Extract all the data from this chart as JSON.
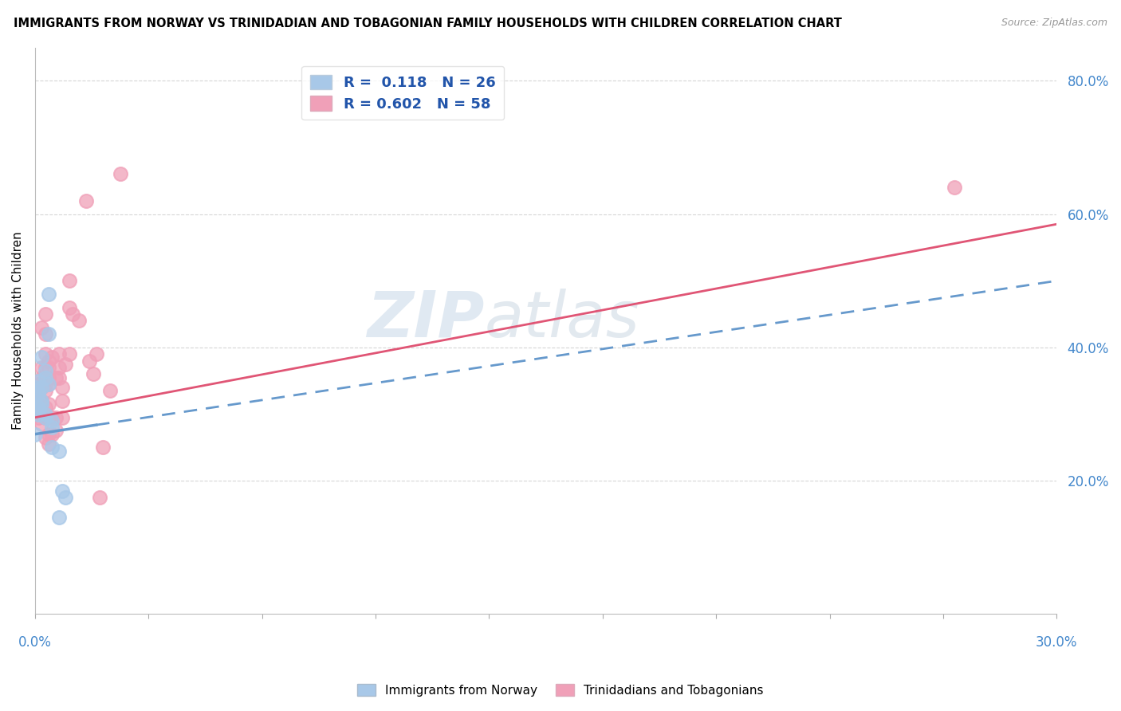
{
  "title": "IMMIGRANTS FROM NORWAY VS TRINIDADIAN AND TOBAGONIAN FAMILY HOUSEHOLDS WITH CHILDREN CORRELATION CHART",
  "source": "Source: ZipAtlas.com",
  "ylabel": "Family Households with Children",
  "watermark": "ZIPatlas",
  "norway_R": 0.118,
  "norway_N": 26,
  "trinidad_R": 0.602,
  "trinidad_N": 58,
  "norway_color": "#a8c8e8",
  "trinidad_color": "#f0a0b8",
  "norway_line_color": "#6699cc",
  "trinidad_line_color": "#e05575",
  "norway_points": [
    [
      0.0,
      0.27
    ],
    [
      0.001,
      0.333
    ],
    [
      0.002,
      0.34
    ],
    [
      0.001,
      0.35
    ],
    [
      0.001,
      0.31
    ],
    [
      0.001,
      0.33
    ],
    [
      0.002,
      0.32
    ],
    [
      0.001,
      0.305
    ],
    [
      0.0,
      0.34
    ],
    [
      0.001,
      0.3
    ],
    [
      0.002,
      0.315
    ],
    [
      0.003,
      0.365
    ],
    [
      0.003,
      0.295
    ],
    [
      0.002,
      0.385
    ],
    [
      0.004,
      0.42
    ],
    [
      0.003,
      0.355
    ],
    [
      0.004,
      0.345
    ],
    [
      0.004,
      0.48
    ],
    [
      0.003,
      0.3
    ],
    [
      0.005,
      0.28
    ],
    [
      0.005,
      0.25
    ],
    [
      0.005,
      0.29
    ],
    [
      0.007,
      0.245
    ],
    [
      0.007,
      0.145
    ],
    [
      0.008,
      0.185
    ],
    [
      0.009,
      0.175
    ]
  ],
  "trinidad_points": [
    [
      0.0,
      0.3
    ],
    [
      0.0,
      0.33
    ],
    [
      0.001,
      0.345
    ],
    [
      0.001,
      0.335
    ],
    [
      0.001,
      0.32
    ],
    [
      0.001,
      0.315
    ],
    [
      0.001,
      0.295
    ],
    [
      0.002,
      0.43
    ],
    [
      0.002,
      0.37
    ],
    [
      0.002,
      0.355
    ],
    [
      0.002,
      0.34
    ],
    [
      0.002,
      0.32
    ],
    [
      0.002,
      0.3
    ],
    [
      0.002,
      0.285
    ],
    [
      0.003,
      0.45
    ],
    [
      0.003,
      0.42
    ],
    [
      0.003,
      0.39
    ],
    [
      0.003,
      0.37
    ],
    [
      0.003,
      0.345
    ],
    [
      0.003,
      0.335
    ],
    [
      0.003,
      0.31
    ],
    [
      0.003,
      0.295
    ],
    [
      0.003,
      0.265
    ],
    [
      0.004,
      0.38
    ],
    [
      0.004,
      0.37
    ],
    [
      0.004,
      0.355
    ],
    [
      0.004,
      0.345
    ],
    [
      0.004,
      0.315
    ],
    [
      0.004,
      0.295
    ],
    [
      0.004,
      0.27
    ],
    [
      0.004,
      0.255
    ],
    [
      0.005,
      0.385
    ],
    [
      0.005,
      0.295
    ],
    [
      0.005,
      0.27
    ],
    [
      0.006,
      0.355
    ],
    [
      0.006,
      0.295
    ],
    [
      0.006,
      0.275
    ],
    [
      0.007,
      0.39
    ],
    [
      0.007,
      0.37
    ],
    [
      0.007,
      0.355
    ],
    [
      0.008,
      0.34
    ],
    [
      0.008,
      0.32
    ],
    [
      0.008,
      0.295
    ],
    [
      0.009,
      0.375
    ],
    [
      0.01,
      0.5
    ],
    [
      0.01,
      0.46
    ],
    [
      0.01,
      0.39
    ],
    [
      0.011,
      0.45
    ],
    [
      0.013,
      0.44
    ],
    [
      0.015,
      0.62
    ],
    [
      0.016,
      0.38
    ],
    [
      0.017,
      0.36
    ],
    [
      0.018,
      0.39
    ],
    [
      0.019,
      0.175
    ],
    [
      0.02,
      0.25
    ],
    [
      0.022,
      0.335
    ],
    [
      0.025,
      0.66
    ],
    [
      0.27,
      0.64
    ]
  ],
  "xlim": [
    0.0,
    0.3
  ],
  "ylim": [
    0.0,
    0.85
  ],
  "norway_trend": [
    0.0,
    0.27,
    0.3,
    0.5
  ],
  "trinidad_trend": [
    0.0,
    0.295,
    0.3,
    0.585
  ],
  "figsize": [
    14.06,
    8.92
  ],
  "dpi": 100
}
